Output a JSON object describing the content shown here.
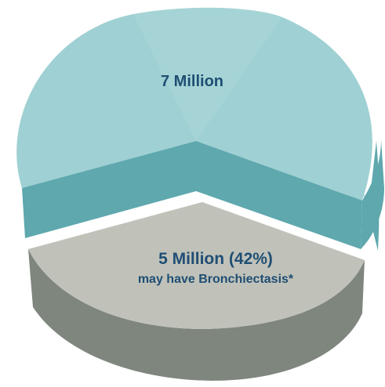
{
  "chart_data": {
    "type": "pie",
    "style": "3d-exploded",
    "title": "",
    "slices": [
      {
        "label": "7 Million",
        "sublabel": "",
        "value": 58,
        "color": "#9fd0d3",
        "side_color": "#5ea8ae"
      },
      {
        "label": "5 Million (42%)",
        "sublabel": "may have Bronchiectasis*",
        "value": 42,
        "color": "#c0c2ba",
        "side_color": "#7f867e",
        "exploded": true
      }
    ]
  }
}
